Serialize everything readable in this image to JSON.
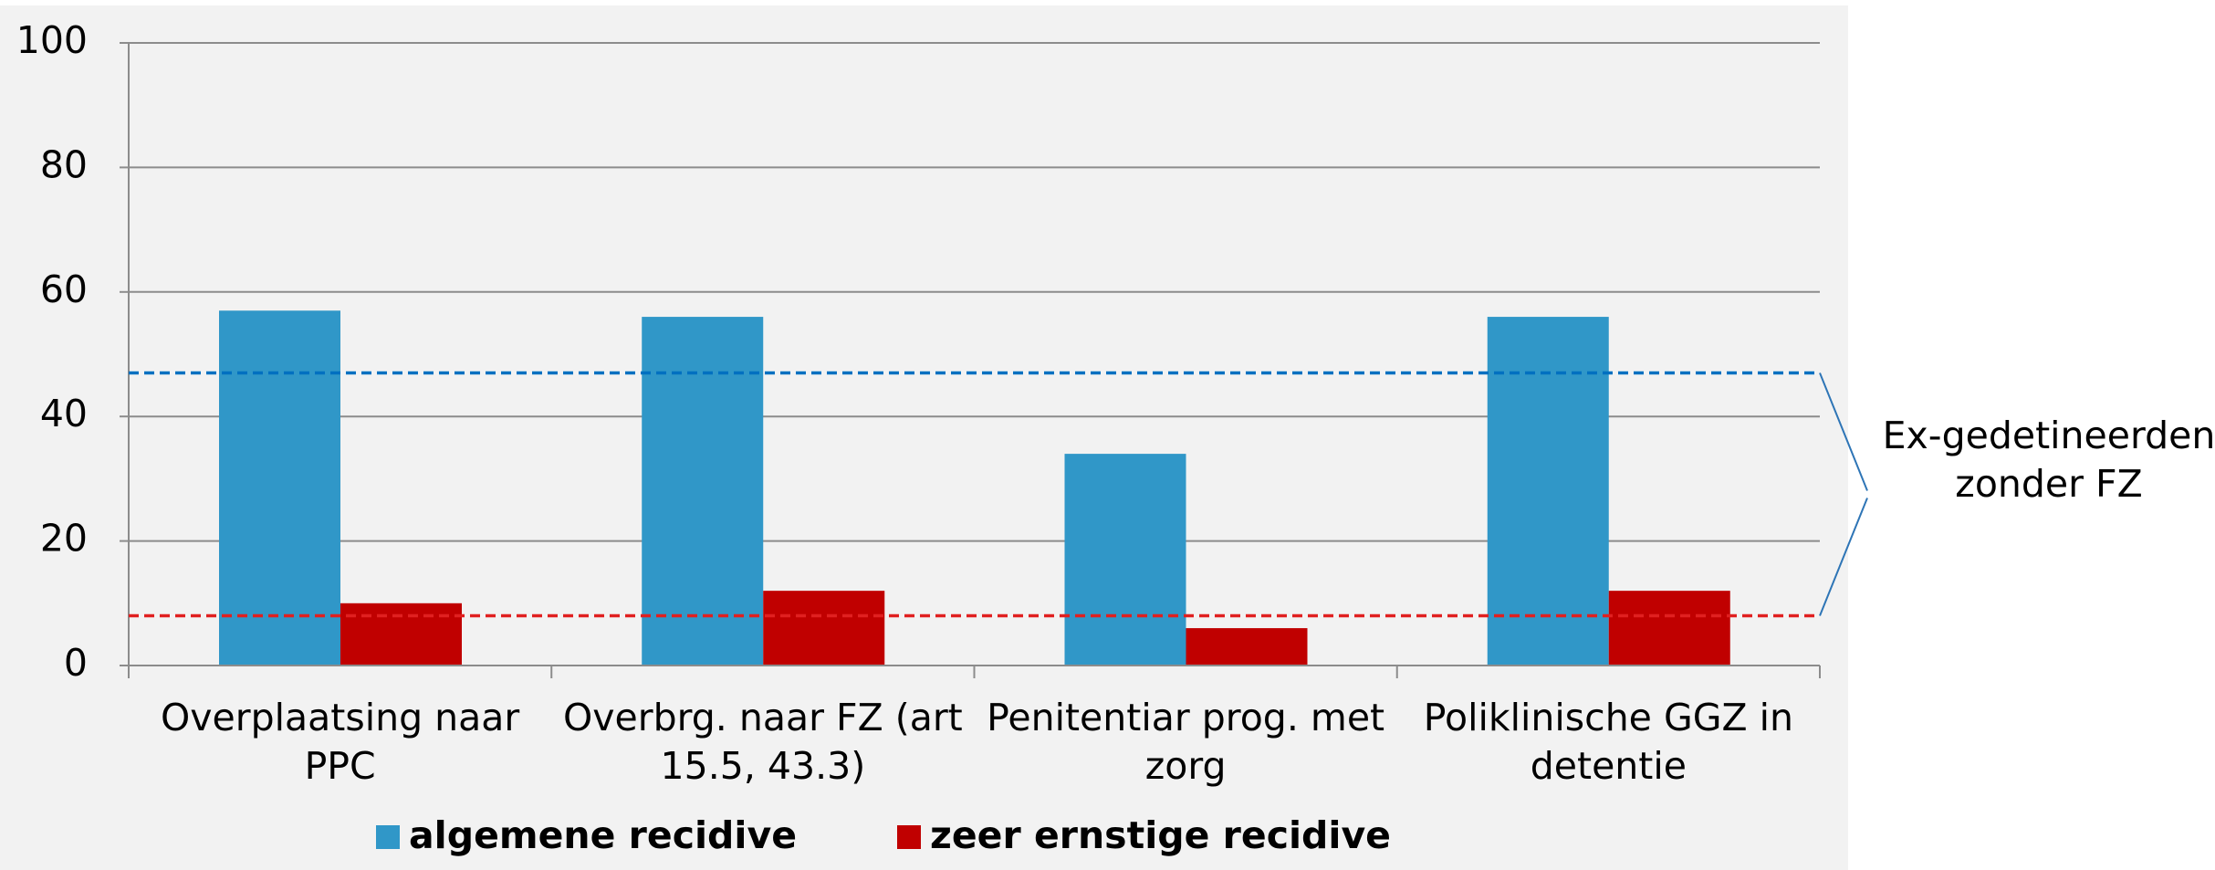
{
  "chart_data": {
    "type": "bar",
    "categories": [
      "Overplaatsing naar PPC",
      "Overbrg. naar FZ (art 15.5, 43.3)",
      "Penitentiar prog. met zorg",
      "Poliklinische GGZ in detentie"
    ],
    "series": [
      {
        "name": "algemene recidive",
        "color": "#3097c8",
        "values": [
          57,
          56,
          34,
          56
        ]
      },
      {
        "name": "zeer ernstige recidive",
        "color": "#c00000",
        "values": [
          10,
          12,
          6,
          12
        ]
      }
    ],
    "reference_lines": [
      {
        "value": 47,
        "color": "#0070c0"
      },
      {
        "value": 8,
        "color": "#e02020"
      }
    ],
    "annotation": "Ex-gedetineerden zonder FZ",
    "ylim": [
      0,
      100
    ],
    "yticks": [
      0,
      20,
      40,
      60,
      80,
      100
    ],
    "grid": true,
    "legend": "bottom"
  }
}
